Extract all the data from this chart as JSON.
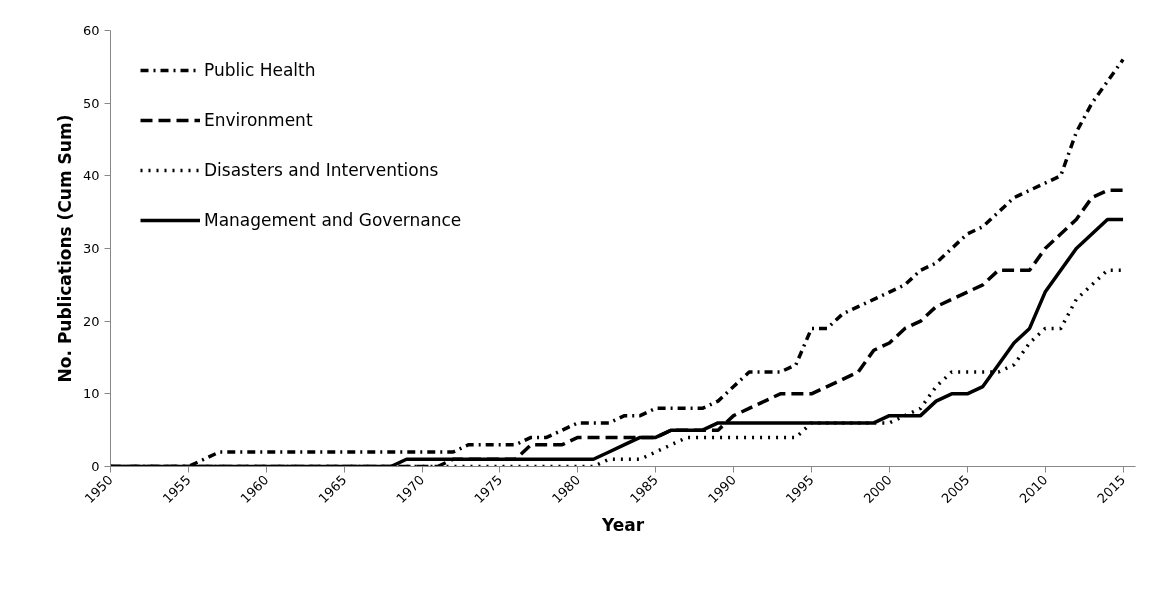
{
  "chart_data": {
    "type": "line",
    "xlabel": "Year",
    "ylabel": "No. Publications (Cum Sum)",
    "x": [
      1950,
      1951,
      1952,
      1953,
      1954,
      1955,
      1956,
      1957,
      1958,
      1959,
      1960,
      1961,
      1962,
      1963,
      1964,
      1965,
      1966,
      1967,
      1968,
      1969,
      1970,
      1971,
      1972,
      1973,
      1974,
      1975,
      1976,
      1977,
      1978,
      1979,
      1980,
      1981,
      1982,
      1983,
      1984,
      1985,
      1986,
      1987,
      1988,
      1989,
      1990,
      1991,
      1992,
      1993,
      1994,
      1995,
      1996,
      1997,
      1998,
      1999,
      2000,
      2001,
      2002,
      2003,
      2004,
      2005,
      2006,
      2007,
      2008,
      2009,
      2010,
      2011,
      2012,
      2013,
      2014,
      2015
    ],
    "series": [
      {
        "name": "Public Health",
        "color": "#000000",
        "line_style": "dashdot",
        "values": [
          0,
          0,
          0,
          0,
          0,
          0,
          1,
          2,
          2,
          2,
          2,
          2,
          2,
          2,
          2,
          2,
          2,
          2,
          2,
          2,
          2,
          2,
          2,
          3,
          3,
          3,
          3,
          4,
          4,
          5,
          6,
          6,
          6,
          7,
          7,
          8,
          8,
          8,
          8,
          9,
          11,
          13,
          13,
          13,
          14,
          19,
          19,
          21,
          22,
          23,
          24,
          25,
          27,
          28,
          30,
          32,
          33,
          35,
          37,
          38,
          39,
          40,
          46,
          50,
          53,
          56
        ]
      },
      {
        "name": "Environment",
        "color": "#000000",
        "line_style": "dashed",
        "values": [
          0,
          0,
          0,
          0,
          0,
          0,
          0,
          0,
          0,
          0,
          0,
          0,
          0,
          0,
          0,
          0,
          0,
          0,
          0,
          0,
          0,
          0,
          1,
          1,
          1,
          1,
          1,
          3,
          3,
          3,
          4,
          4,
          4,
          4,
          4,
          4,
          5,
          5,
          5,
          5,
          7,
          8,
          9,
          10,
          10,
          10,
          11,
          12,
          13,
          16,
          17,
          19,
          20,
          22,
          23,
          24,
          25,
          27,
          27,
          27,
          30,
          32,
          34,
          37,
          38,
          38
        ]
      },
      {
        "name": "Disasters and Interventions",
        "color": "#000000",
        "line_style": "dotted",
        "values": [
          0,
          0,
          0,
          0,
          0,
          0,
          0,
          0,
          0,
          0,
          0,
          0,
          0,
          0,
          0,
          0,
          0,
          0,
          0,
          0,
          0,
          0,
          0,
          0,
          0,
          0,
          0,
          0,
          0,
          0,
          0,
          0,
          1,
          1,
          1,
          2,
          3,
          4,
          4,
          4,
          4,
          4,
          4,
          4,
          4,
          6,
          6,
          6,
          6,
          6,
          6,
          7,
          8,
          11,
          13,
          13,
          13,
          13,
          14,
          17,
          19,
          19,
          23,
          25,
          27,
          27
        ]
      },
      {
        "name": "Management and Governance",
        "color": "#000000",
        "line_style": "solid",
        "values": [
          0,
          0,
          0,
          0,
          0,
          0,
          0,
          0,
          0,
          0,
          0,
          0,
          0,
          0,
          0,
          0,
          0,
          0,
          0,
          1,
          1,
          1,
          1,
          1,
          1,
          1,
          1,
          1,
          1,
          1,
          1,
          1,
          2,
          3,
          4,
          4,
          5,
          5,
          5,
          6,
          6,
          6,
          6,
          6,
          6,
          6,
          6,
          6,
          6,
          6,
          7,
          7,
          7,
          9,
          10,
          10,
          11,
          14,
          17,
          19,
          24,
          27,
          30,
          32,
          34,
          34
        ]
      }
    ],
    "xlim": [
      1950,
      2015.8
    ],
    "xticks": [
      1950,
      1955,
      1960,
      1965,
      1970,
      1975,
      1980,
      1985,
      1990,
      1995,
      2000,
      2005,
      2010,
      2015
    ],
    "ylim": [
      0,
      60
    ],
    "yticks": [
      0,
      10,
      20,
      30,
      40,
      50,
      60
    ],
    "grid": false,
    "legend": "top left",
    "marker": "none"
  }
}
